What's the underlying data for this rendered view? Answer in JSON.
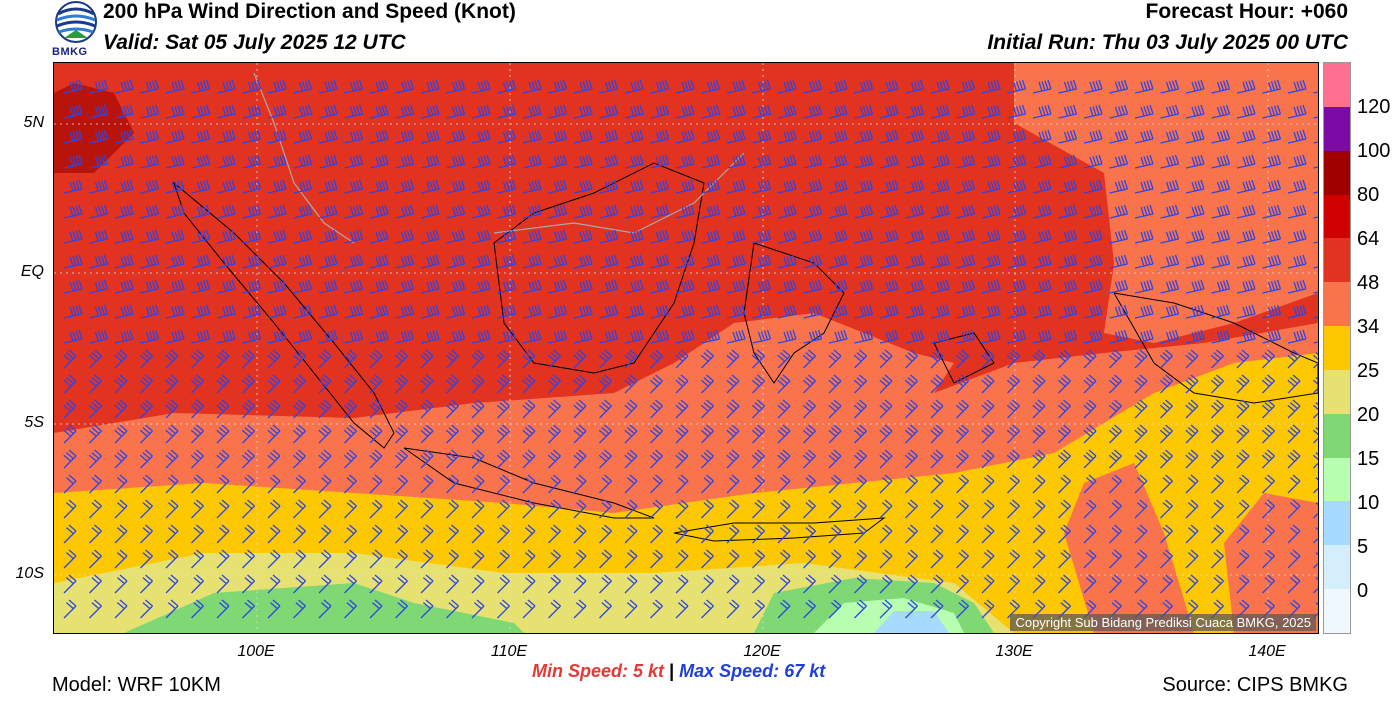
{
  "header": {
    "title": "200 hPa Wind Direction and Speed (Knot)",
    "valid": "Valid: Sat 05 July 2025 12 UTC",
    "forecast_hour": "Forecast Hour: +060",
    "initial_run": "Initial Run: Thu 03 July 2025 00 UTC"
  },
  "logo": {
    "text": "BMKG"
  },
  "map": {
    "lat_labels": [
      "5N",
      "EQ",
      "5S",
      "10S"
    ],
    "lon_labels": [
      "100E",
      "110E",
      "120E",
      "130E",
      "140E"
    ],
    "barb_color": "#2c46e8",
    "copyright": "Copyright Sub Bidang Prediksi Cuaca BMKG, 2025"
  },
  "colorbar": {
    "labels": [
      "120",
      "100",
      "80",
      "64",
      "48",
      "34",
      "25",
      "20",
      "15",
      "10",
      "5",
      "0"
    ],
    "colors": [
      "#ff6f8f",
      "#7b0aa6",
      "#a00000",
      "#d00000",
      "#e23220",
      "#f9744d",
      "#fdc800",
      "#e6e170",
      "#7fd873",
      "#b8ffb2",
      "#a6dbff",
      "#d4eefc",
      "#f0f8ff"
    ]
  },
  "speeds": {
    "min_label": "Min Speed:",
    "min_value": "5 kt",
    "separator": "|",
    "max_label": "Max Speed:",
    "max_value": "67 kt"
  },
  "footer": {
    "model": "Model: WRF 10KM",
    "source": "Source: CIPS BMKG"
  }
}
